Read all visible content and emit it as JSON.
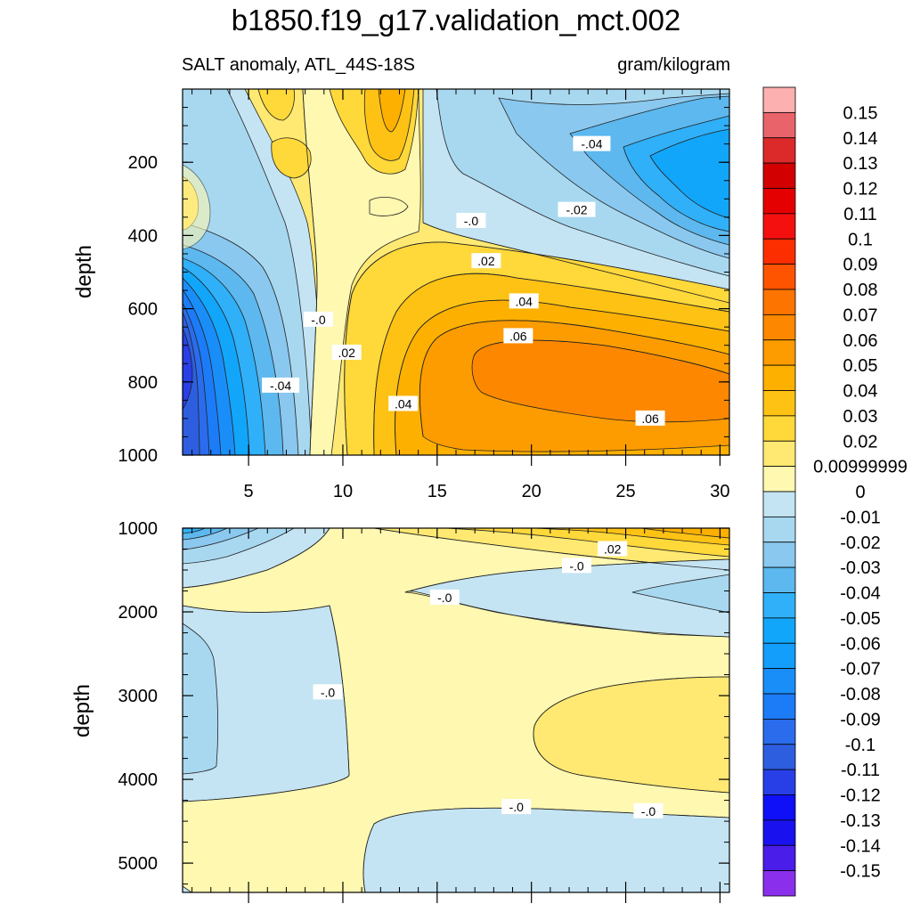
{
  "title": "b1850.f19_g17.validation_mct.002",
  "subtitle_left": "SALT anomaly, ATL_44S-18S",
  "subtitle_right": "gram/kilogram",
  "chart_data": {
    "type": "heatmap",
    "x_range": [
      1.5,
      30.5
    ],
    "x_ticks": [
      "5",
      "10",
      "15",
      "20",
      "25",
      "30"
    ],
    "x_tick_values": [
      5,
      10,
      15,
      20,
      25,
      30
    ],
    "panels": [
      {
        "name": "upper",
        "ylabel": "depth",
        "ylim": [
          0,
          1000
        ],
        "y_ticks": [
          "200",
          "400",
          "600",
          "800",
          "1000"
        ],
        "y_tick_values": [
          200,
          400,
          600,
          800,
          1000
        ],
        "contour_labels": [
          {
            "text": "-.04",
            "x": 23.2,
            "y": 150
          },
          {
            "text": "-.02",
            "x": 22.4,
            "y": 330
          },
          {
            "text": "-.0",
            "x": 16.8,
            "y": 360
          },
          {
            "text": ".02",
            "x": 17.6,
            "y": 470
          },
          {
            "text": ".04",
            "x": 19.6,
            "y": 580
          },
          {
            "text": "-.0",
            "x": 8.7,
            "y": 630
          },
          {
            "text": ".02",
            "x": 10.2,
            "y": 720
          },
          {
            "text": ".06",
            "x": 19.3,
            "y": 675
          },
          {
            "text": "-.04",
            "x": 6.7,
            "y": 810
          },
          {
            "text": ".04",
            "x": 13.2,
            "y": 860
          },
          {
            "text": ".06",
            "x": 26.3,
            "y": 900
          }
        ]
      },
      {
        "name": "lower",
        "ylabel": "depth",
        "ylim": [
          1000,
          5350
        ],
        "y_ticks": [
          "1000",
          "2000",
          "3000",
          "4000",
          "5000"
        ],
        "y_tick_values": [
          1000,
          2000,
          3000,
          4000,
          5000
        ],
        "contour_labels": [
          {
            "text": ".02",
            "x": 24.3,
            "y": 1250
          },
          {
            "text": "-.0",
            "x": 22.4,
            "y": 1450
          },
          {
            "text": "-.0",
            "x": 15.4,
            "y": 1830
          },
          {
            "text": "-.0",
            "x": 9.2,
            "y": 2960
          },
          {
            "text": "-.0",
            "x": 19.2,
            "y": 4330
          },
          {
            "text": "-.0",
            "x": 26.2,
            "y": 4380
          }
        ]
      }
    ],
    "colorbar": {
      "labels": [
        "0.15",
        "0.14",
        "0.13",
        "0.12",
        "0.11",
        "0.1",
        "0.09",
        "0.08",
        "0.07",
        "0.06",
        "0.05",
        "0.04",
        "0.03",
        "0.02",
        "0.00999999",
        "0",
        "-0.01",
        "-0.02",
        "-0.03",
        "-0.04",
        "-0.05",
        "-0.06",
        "-0.07",
        "-0.08",
        "-0.09",
        "-0.1",
        "-0.11",
        "-0.12",
        "-0.13",
        "-0.14",
        "-0.15"
      ],
      "colors": [
        "#fdb0b0",
        "#e8646a",
        "#dc2a2a",
        "#d20000",
        "#e40000",
        "#f51010",
        "#fc2e00",
        "#fe5400",
        "#fd7400",
        "#fd8800",
        "#fd9c00",
        "#fdb000",
        "#fdc214",
        "#ffd83a",
        "#ffe972",
        "#fef8b0",
        "#c4e4f3",
        "#a8d8f0",
        "#8ac8ef",
        "#5cb8ee",
        "#30b0f8",
        "#12a6fa",
        "#129efa",
        "#1a8ef8",
        "#1c7cf8",
        "#2a6cec",
        "#2e5ee0",
        "#283fe8",
        "#0f10f8",
        "#1a12ee",
        "#4a1ee8",
        "#8a30ec"
      ]
    }
  }
}
